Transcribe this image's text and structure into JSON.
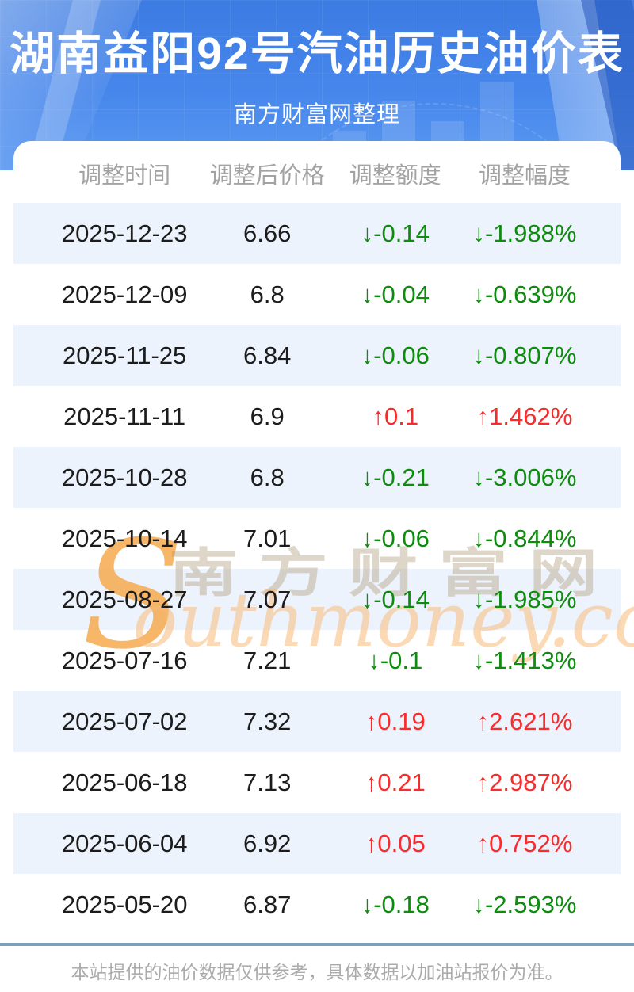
{
  "header": {
    "title": "湖南益阳92号汽油历史油价表",
    "subtitle": "南方财富网整理"
  },
  "chart_data": {
    "type": "table",
    "title": "湖南益阳92号汽油历史油价表",
    "columns": [
      "调整时间",
      "调整后价格",
      "调整额度",
      "调整幅度"
    ],
    "rows": [
      {
        "date": "2025-12-23",
        "price": "6.66",
        "change": "↓-0.14",
        "percent": "↓-1.988%",
        "direction": "down"
      },
      {
        "date": "2025-12-09",
        "price": "6.8",
        "change": "↓-0.04",
        "percent": "↓-0.639%",
        "direction": "down"
      },
      {
        "date": "2025-11-25",
        "price": "6.84",
        "change": "↓-0.06",
        "percent": "↓-0.807%",
        "direction": "down"
      },
      {
        "date": "2025-11-11",
        "price": "6.9",
        "change": "↑0.1",
        "percent": "↑1.462%",
        "direction": "up"
      },
      {
        "date": "2025-10-28",
        "price": "6.8",
        "change": "↓-0.21",
        "percent": "↓-3.006%",
        "direction": "down"
      },
      {
        "date": "2025-10-14",
        "price": "7.01",
        "change": "↓-0.06",
        "percent": "↓-0.844%",
        "direction": "down"
      },
      {
        "date": "2025-08-27",
        "price": "7.07",
        "change": "↓-0.14",
        "percent": "↓-1.985%",
        "direction": "down"
      },
      {
        "date": "2025-07-16",
        "price": "7.21",
        "change": "↓-0.1",
        "percent": "↓-1.413%",
        "direction": "down"
      },
      {
        "date": "2025-07-02",
        "price": "7.32",
        "change": "↑0.19",
        "percent": "↑2.621%",
        "direction": "up"
      },
      {
        "date": "2025-06-18",
        "price": "7.13",
        "change": "↑0.21",
        "percent": "↑2.987%",
        "direction": "up"
      },
      {
        "date": "2025-06-04",
        "price": "6.92",
        "change": "↑0.05",
        "percent": "↑0.752%",
        "direction": "up"
      },
      {
        "date": "2025-05-20",
        "price": "6.87",
        "change": "↓-0.18",
        "percent": "↓-2.593%",
        "direction": "down"
      }
    ]
  },
  "watermark": {
    "initial": "S",
    "cn": "南方财富网",
    "en": "outhmoney.com"
  },
  "footer": {
    "note": "本站提供的油价数据仅供参考，具体数据以加油站报价为准。"
  },
  "colors": {
    "up": "#fa2b2b",
    "down": "#0d8c0d",
    "stripe": "#edf3fc",
    "divider": "#7e9ec0"
  }
}
